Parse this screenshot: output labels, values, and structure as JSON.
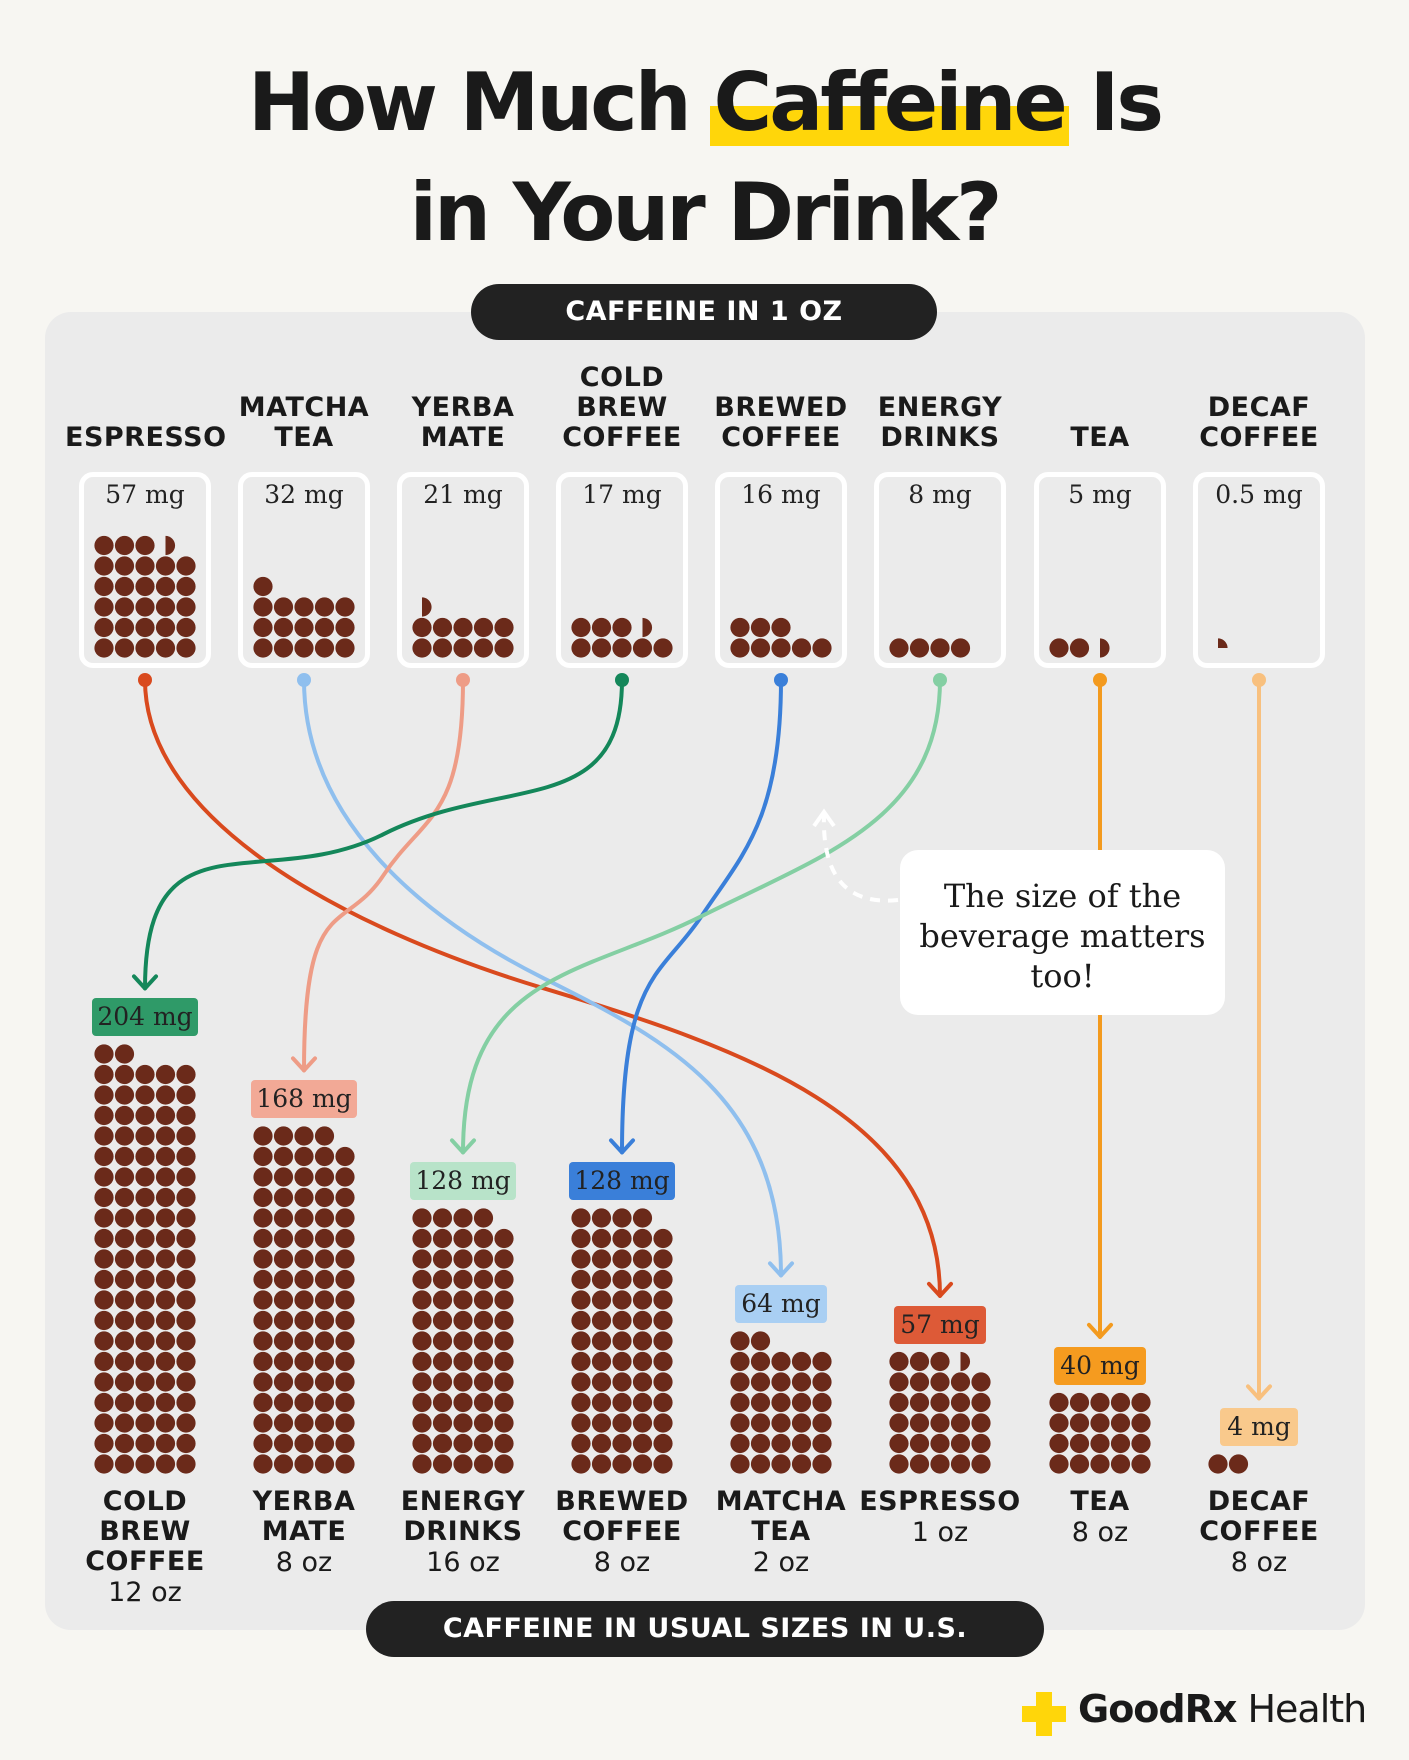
{
  "title": {
    "line1_before": "How Much ",
    "line1_highlight": "Caffeine",
    "line1_after": " Is",
    "line2": "in Your Drink?"
  },
  "top_header": "CAFFEINE IN 1 OZ",
  "bottom_header": "CAFFEINE IN USUAL SIZES IN U.S.",
  "callout": "The size of the beverage matters too!",
  "brand": {
    "name_bold": "GoodRx",
    "name_light": " Health",
    "logo_color": "#ffd60a"
  },
  "chart_data": {
    "type": "pictogram",
    "unit": "mg",
    "dot_unit_mg": 2,
    "top_series": {
      "label": "CAFFEINE IN 1 OZ",
      "items": [
        {
          "name": "ESPRESSO",
          "value": 57,
          "value_label": "57 mg",
          "color": "#d94a1e"
        },
        {
          "name": "MATCHA TEA",
          "value": 32,
          "value_label": "32 mg",
          "color": "#8fbfee"
        },
        {
          "name": "YERBA MATE",
          "value": 21,
          "value_label": "21 mg",
          "color": "#ee9c86"
        },
        {
          "name": "COLD BREW COFFEE",
          "value": 17,
          "value_label": "17 mg",
          "color": "#14875a"
        },
        {
          "name": "BREWED COFFEE",
          "value": 16,
          "value_label": "16 mg",
          "color": "#3a7fd9"
        },
        {
          "name": "ENERGY DRINKS",
          "value": 8,
          "value_label": "8 mg",
          "color": "#84cfa3"
        },
        {
          "name": "TEA",
          "value": 5,
          "value_label": "5 mg",
          "color": "#f39a1e"
        },
        {
          "name": "DECAF COFFEE",
          "value": 0.5,
          "value_label": "0.5 mg",
          "color": "#f8c07e"
        }
      ]
    },
    "bottom_series": {
      "label": "CAFFEINE IN USUAL SIZES IN U.S.",
      "items": [
        {
          "name": "COLD BREW COFFEE",
          "size": "12 oz",
          "value": 204,
          "value_label": "204 mg",
          "badge_color": "#2f9a68"
        },
        {
          "name": "YERBA MATE",
          "size": "8 oz",
          "value": 168,
          "value_label": "168 mg",
          "badge_color": "#f2a996"
        },
        {
          "name": "ENERGY DRINKS",
          "size": "16 oz",
          "value": 128,
          "value_label": "128 mg",
          "badge_color": "#b8e3c9"
        },
        {
          "name": "BREWED COFFEE",
          "size": "8 oz",
          "value": 128,
          "value_label": "128 mg",
          "badge_color": "#3a7fd9"
        },
        {
          "name": "MATCHA TEA",
          "size": "2 oz",
          "value": 64,
          "value_label": "64 mg",
          "badge_color": "#a9cff3"
        },
        {
          "name": "ESPRESSO",
          "size": "1 oz",
          "value": 57,
          "value_label": "57 mg",
          "badge_color": "#dd5a37"
        },
        {
          "name": "TEA",
          "size": "8 oz",
          "value": 40,
          "value_label": "40 mg",
          "badge_color": "#f59b1f"
        },
        {
          "name": "DECAF COFFEE",
          "size": "8 oz",
          "value": 4,
          "value_label": "4 mg",
          "badge_color": "#f9c98c"
        }
      ]
    },
    "dot_color": "#6b2a1a"
  }
}
